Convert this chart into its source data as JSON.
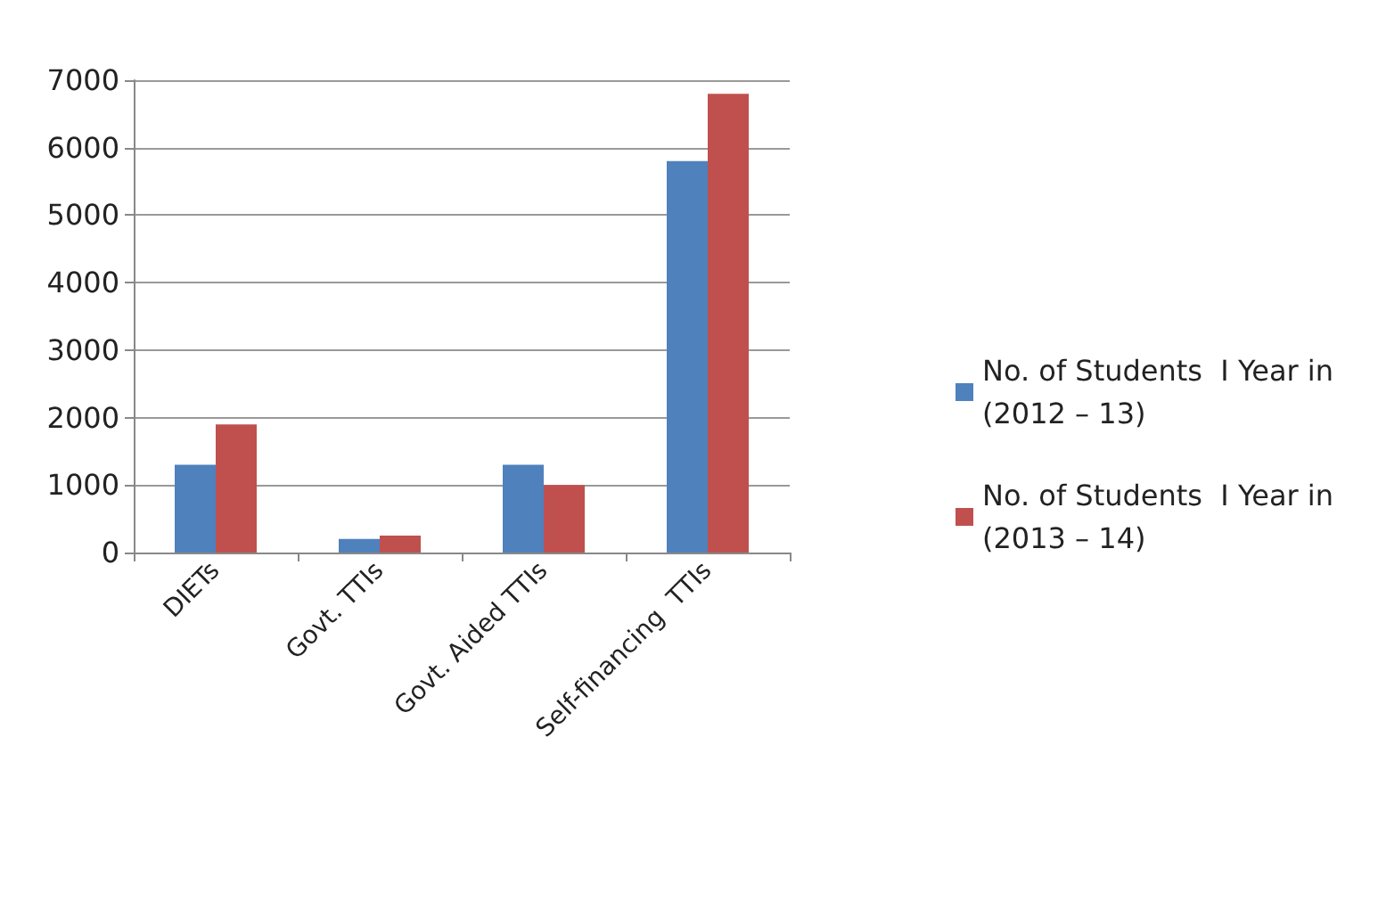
{
  "chart_data": {
    "type": "bar",
    "categories": [
      "DIETs",
      "Govt. TTIs",
      "Govt. Aided TTIs",
      "Self-financing  TTIs"
    ],
    "series": [
      {
        "name": "No. of Students  I Year in (2012 – 13)",
        "color": "#4f81bd",
        "values": [
          1300,
          200,
          1300,
          5800
        ]
      },
      {
        "name": "No. of Students  I Year in (2013 – 14)",
        "color": "#c0504d",
        "values": [
          1900,
          250,
          1000,
          6800
        ]
      }
    ],
    "ylim": [
      0,
      7000
    ],
    "yticks": [
      0,
      1000,
      2000,
      3000,
      4000,
      5000,
      6000,
      7000
    ],
    "grid": "y",
    "legend": "right"
  }
}
